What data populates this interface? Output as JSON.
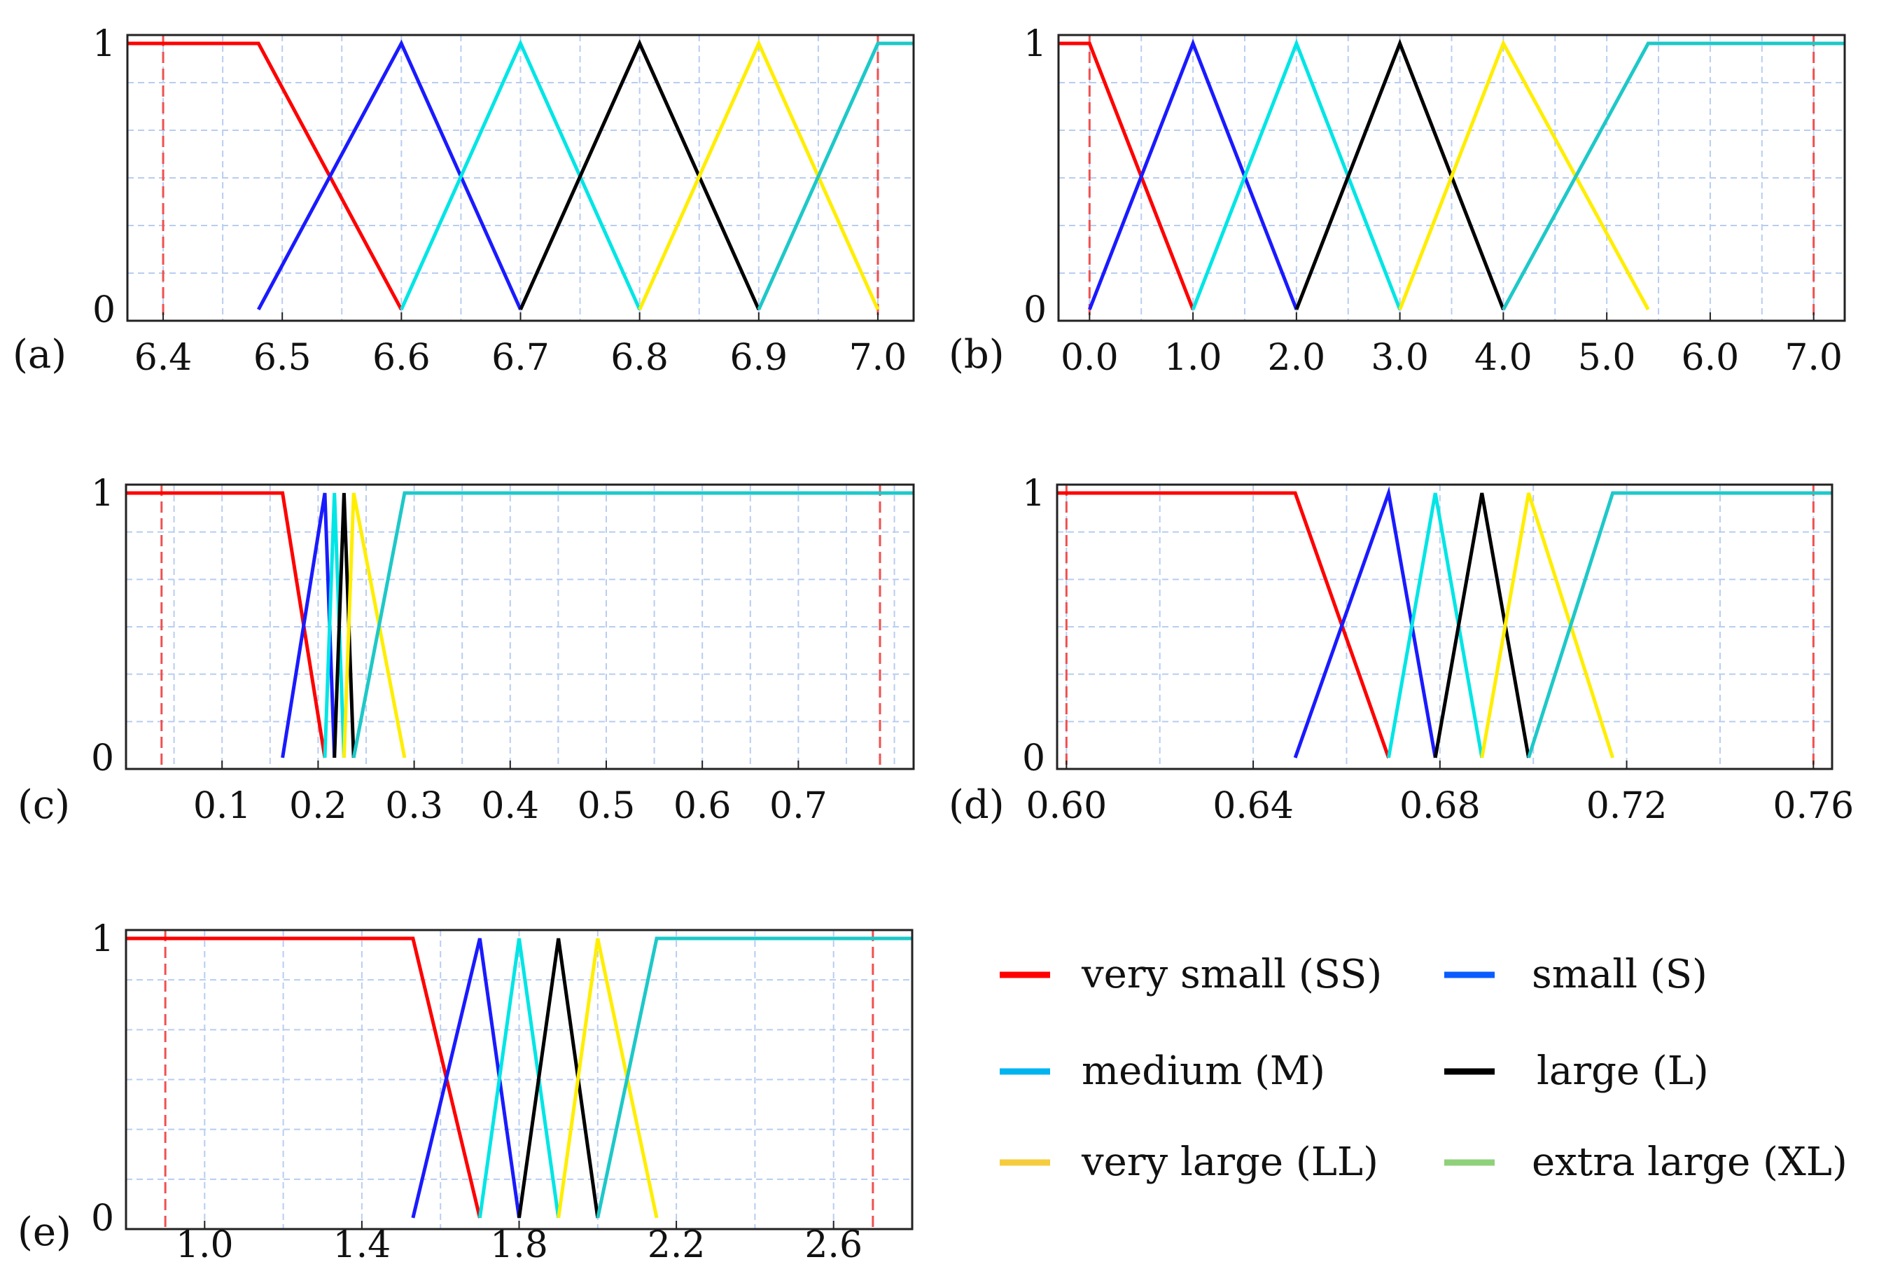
{
  "chart_data": [
    {
      "type": "line",
      "panel": "(a)",
      "xlim": [
        6.37,
        7.03
      ],
      "ylim": [
        0,
        1
      ],
      "xticks": [
        6.4,
        6.5,
        6.6,
        6.7,
        6.8,
        6.9,
        7.0
      ],
      "xticklabels": [
        "6.4",
        "6.5",
        "6.6",
        "6.7",
        "6.8",
        "6.9",
        "7.0"
      ],
      "yticklabels": [
        "0",
        "1"
      ],
      "bounds": [
        6.4,
        7.0
      ],
      "series": [
        {
          "name": "very small (SS)",
          "x": [
            6.37,
            6.48,
            6.6
          ],
          "y": [
            1,
            1,
            0
          ]
        },
        {
          "name": "small (S)",
          "x": [
            6.48,
            6.6,
            6.7
          ],
          "y": [
            0,
            1,
            0
          ]
        },
        {
          "name": "medium (M)",
          "x": [
            6.6,
            6.7,
            6.8
          ],
          "y": [
            0,
            1,
            0
          ]
        },
        {
          "name": "large (L)",
          "x": [
            6.7,
            6.8,
            6.9
          ],
          "y": [
            0,
            1,
            0
          ]
        },
        {
          "name": "very large (LL)",
          "x": [
            6.8,
            6.9,
            7.0
          ],
          "y": [
            0,
            1,
            0
          ]
        },
        {
          "name": "extra large (XL)",
          "x": [
            6.9,
            7.0,
            7.03
          ],
          "y": [
            0,
            1,
            1
          ]
        }
      ]
    },
    {
      "type": "line",
      "panel": "(b)",
      "xlim": [
        -0.3,
        7.3
      ],
      "ylim": [
        0,
        1
      ],
      "xticks": [
        0,
        1,
        2,
        3,
        4,
        5,
        6,
        7
      ],
      "xticklabels": [
        "0.0",
        "1.0",
        "2.0",
        "3.0",
        "4.0",
        "5.0",
        "6.0",
        "7.0"
      ],
      "yticklabels": [
        "0",
        "1"
      ],
      "bounds": [
        0.0,
        7.0
      ],
      "series": [
        {
          "name": "very small (SS)",
          "x": [
            -0.3,
            0.0,
            1.0
          ],
          "y": [
            1,
            1,
            0
          ]
        },
        {
          "name": "small (S)",
          "x": [
            0.0,
            1.0,
            2.0
          ],
          "y": [
            0,
            1,
            0
          ]
        },
        {
          "name": "medium (M)",
          "x": [
            1.0,
            2.0,
            3.0
          ],
          "y": [
            0,
            1,
            0
          ]
        },
        {
          "name": "large (L)",
          "x": [
            2.0,
            3.0,
            4.0
          ],
          "y": [
            0,
            1,
            0
          ]
        },
        {
          "name": "very large (LL)",
          "x": [
            3.0,
            4.0,
            5.4
          ],
          "y": [
            0,
            1,
            0
          ]
        },
        {
          "name": "extra large (XL)",
          "x": [
            4.0,
            5.4,
            7.3
          ],
          "y": [
            0,
            1,
            1
          ]
        }
      ]
    },
    {
      "type": "line",
      "panel": "(c)",
      "xlim": [
        0.0,
        0.82
      ],
      "ylim": [
        0,
        1
      ],
      "xticks": [
        0.1,
        0.2,
        0.3,
        0.4,
        0.5,
        0.6,
        0.7
      ],
      "xticklabels": [
        "0.1",
        "0.2",
        "0.3",
        "0.4",
        "0.5",
        "0.6",
        "0.7"
      ],
      "yticklabels": [
        "0",
        "1"
      ],
      "bounds": [
        0.037,
        0.785
      ],
      "series": [
        {
          "name": "very small (SS)",
          "x": [
            0.0,
            0.163,
            0.207
          ],
          "y": [
            1,
            1,
            0
          ]
        },
        {
          "name": "small (S)",
          "x": [
            0.163,
            0.207,
            0.217
          ],
          "y": [
            0,
            1,
            0
          ]
        },
        {
          "name": "medium (M)",
          "x": [
            0.207,
            0.217,
            0.227
          ],
          "y": [
            0,
            1,
            0
          ]
        },
        {
          "name": "large (L)",
          "x": [
            0.217,
            0.227,
            0.237
          ],
          "y": [
            0,
            1,
            0
          ]
        },
        {
          "name": "very large (LL)",
          "x": [
            0.227,
            0.237,
            0.29
          ],
          "y": [
            0,
            1,
            0
          ]
        },
        {
          "name": "extra large (XL)",
          "x": [
            0.237,
            0.29,
            0.82
          ],
          "y": [
            0,
            1,
            1
          ]
        }
      ]
    },
    {
      "type": "line",
      "panel": "(d)",
      "xlim": [
        0.598,
        0.764
      ],
      "ylim": [
        0,
        1
      ],
      "xticks": [
        0.6,
        0.64,
        0.68,
        0.72,
        0.76
      ],
      "xticklabels": [
        "0.60",
        "0.64",
        "0.68",
        "0.72",
        "0.76"
      ],
      "yticklabels": [
        "0",
        "1"
      ],
      "bounds": [
        0.6,
        0.76
      ],
      "series": [
        {
          "name": "very small (SS)",
          "x": [
            0.598,
            0.649,
            0.669
          ],
          "y": [
            1,
            1,
            0
          ]
        },
        {
          "name": "small (S)",
          "x": [
            0.649,
            0.669,
            0.679
          ],
          "y": [
            0,
            1,
            0
          ]
        },
        {
          "name": "medium (M)",
          "x": [
            0.669,
            0.679,
            0.689
          ],
          "y": [
            0,
            1,
            0
          ]
        },
        {
          "name": "large (L)",
          "x": [
            0.679,
            0.689,
            0.699
          ],
          "y": [
            0,
            1,
            0
          ]
        },
        {
          "name": "very large (LL)",
          "x": [
            0.689,
            0.699,
            0.717
          ],
          "y": [
            0,
            1,
            0
          ]
        },
        {
          "name": "extra large (XL)",
          "x": [
            0.699,
            0.717,
            0.764
          ],
          "y": [
            0,
            1,
            1
          ]
        }
      ]
    },
    {
      "type": "line",
      "panel": "(e)",
      "xlim": [
        0.8,
        2.8
      ],
      "ylim": [
        0,
        1
      ],
      "xticks": [
        1.0,
        1.4,
        1.8,
        2.2,
        2.6
      ],
      "xticklabels": [
        "1.0",
        "1.4",
        "1.8",
        "2.2",
        "2.6"
      ],
      "yticklabels": [
        "0",
        "1"
      ],
      "bounds": [
        0.9,
        2.7
      ],
      "series": [
        {
          "name": "very small (SS)",
          "x": [
            0.8,
            1.53,
            1.7
          ],
          "y": [
            1,
            1,
            0
          ]
        },
        {
          "name": "small (S)",
          "x": [
            1.53,
            1.7,
            1.8
          ],
          "y": [
            0,
            1,
            0
          ]
        },
        {
          "name": "medium (M)",
          "x": [
            1.7,
            1.8,
            1.9
          ],
          "y": [
            0,
            1,
            0
          ]
        },
        {
          "name": "large (L)",
          "x": [
            1.8,
            1.9,
            2.0
          ],
          "y": [
            0,
            1,
            0
          ]
        },
        {
          "name": "very large (LL)",
          "x": [
            1.9,
            2.0,
            2.15
          ],
          "y": [
            0,
            1,
            0
          ]
        },
        {
          "name": "extra large (XL)",
          "x": [
            2.0,
            2.15,
            2.8
          ],
          "y": [
            0,
            1,
            1
          ]
        }
      ]
    }
  ],
  "series_colors": {
    "very small (SS)": "#ff0000",
    "small (S)": "#1a1aff",
    "medium (M)": "#00e5e5",
    "large (L)": "#000000",
    "very large (LL)": "#ffee00",
    "extra large (XL)": "#1ec8c8"
  },
  "legend": {
    "entries": [
      {
        "label": "very small (SS)",
        "color": "#ff0000"
      },
      {
        "label": "small (S)",
        "color": "#0a5cff"
      },
      {
        "label": "medium (M)",
        "color": "#00b4f0"
      },
      {
        "label": "large (L)",
        "color": "#000000"
      },
      {
        "label": "very large (LL)",
        "color": "#f5cc3d"
      },
      {
        "label": "extra large (XL)",
        "color": "#8fd17a"
      }
    ]
  },
  "colors": {
    "grid": "#b8cdf0",
    "bound_line": "#f05050",
    "frame": "#222222"
  }
}
